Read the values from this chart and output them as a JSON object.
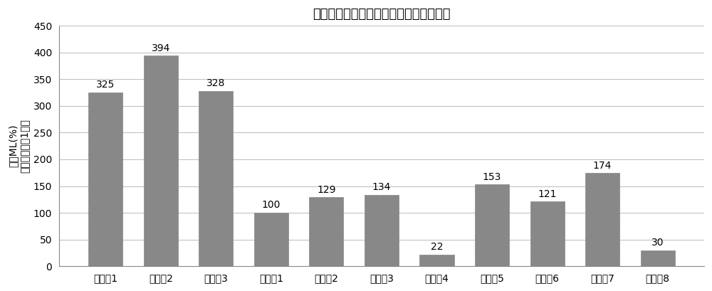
{
  "title": "使用活性氧化铝原料时的共活化剂的效果",
  "categories": [
    "实施例1",
    "实施例2",
    "实施例3",
    "比较例1",
    "比较例2",
    "比较例3",
    "比较例4",
    "比较例5",
    "比较例6",
    "比较例7",
    "比较例8"
  ],
  "values": [
    325,
    394,
    328,
    100,
    129,
    134,
    22,
    153,
    121,
    174,
    30
  ],
  "bar_color": "#888888",
  "ylabel_line1": "相对ML(%)",
  "ylabel_line2": "相对于比较例1之比",
  "ylim": [
    0,
    450
  ],
  "yticks": [
    0,
    50,
    100,
    150,
    200,
    250,
    300,
    350,
    400,
    450
  ],
  "background_color": "#ffffff",
  "grid_color": "#bbbbbb",
  "title_fontsize": 13,
  "label_fontsize": 10,
  "tick_fontsize": 10,
  "value_fontsize": 10
}
